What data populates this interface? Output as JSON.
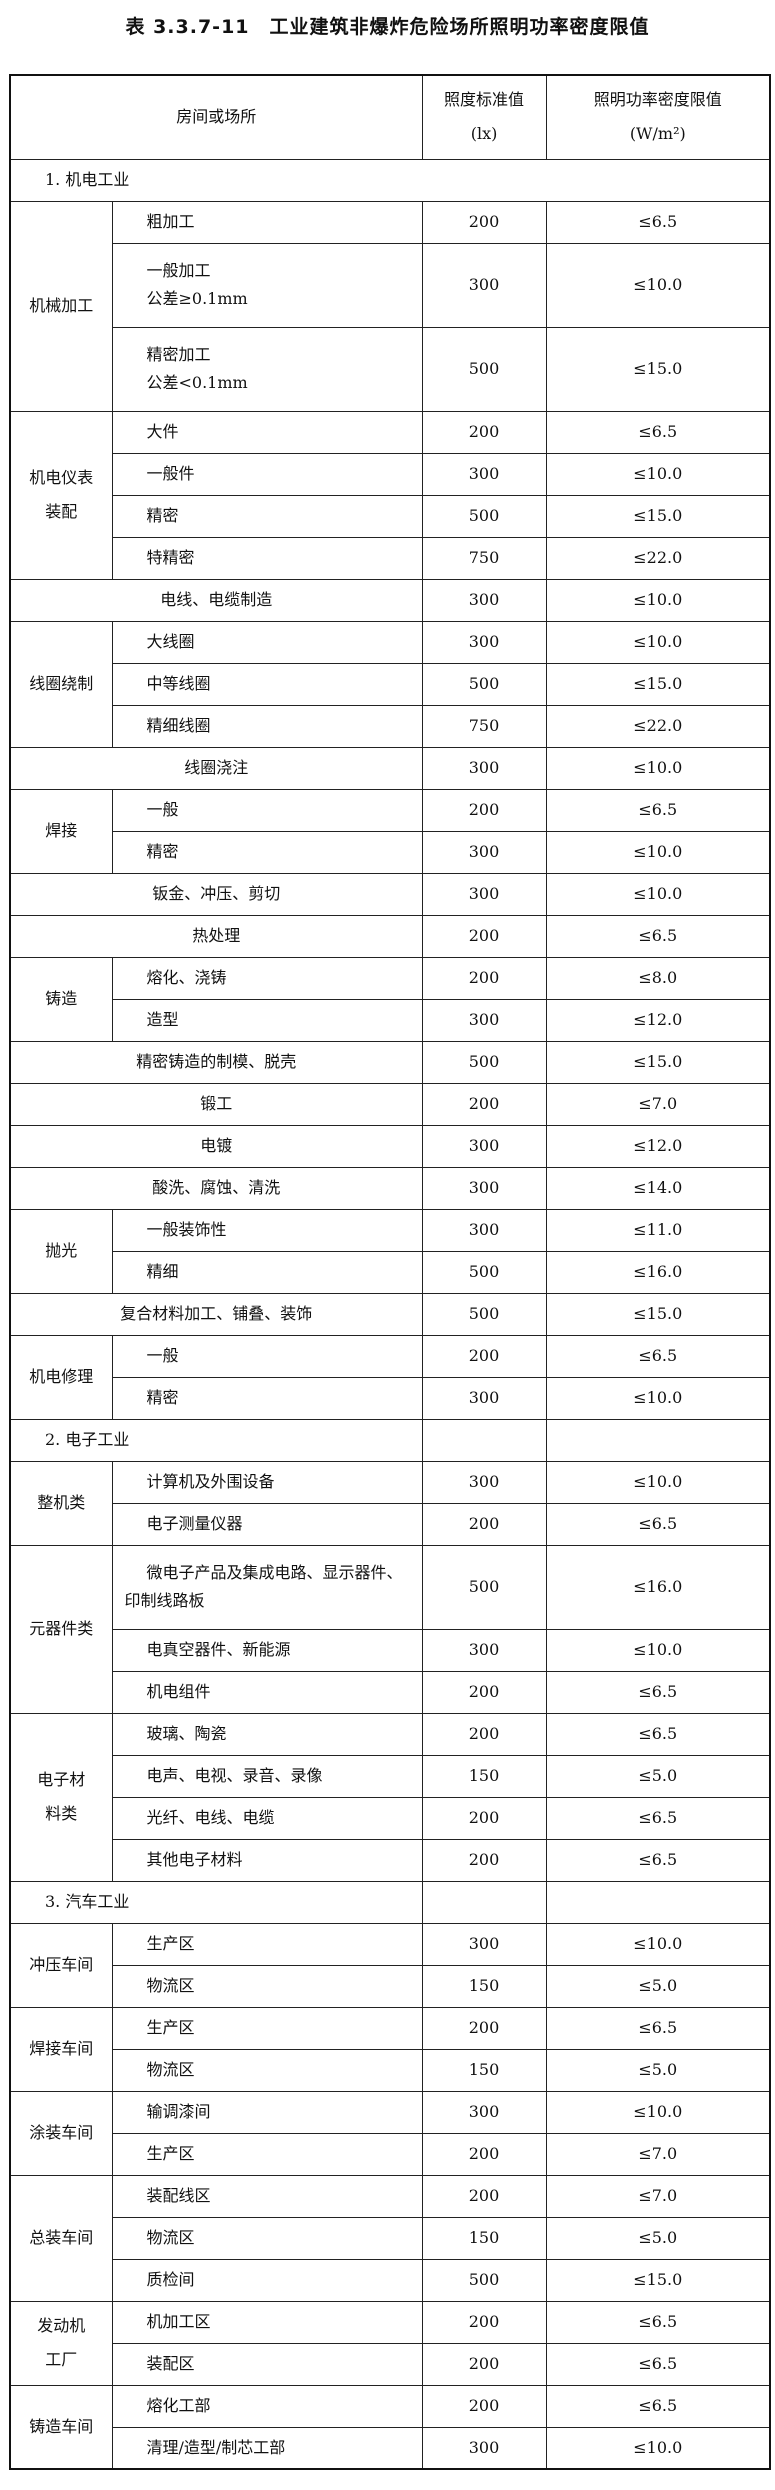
{
  "title": "表 3.3.7-11　工业建筑非爆炸危险场所照明功率密度限值",
  "header": {
    "room": "房间或场所",
    "lux": "照度标准值\n(lx)",
    "lpd": "照明功率密度限值\n(W/m²)"
  },
  "sections": [
    {
      "label": "1. 机电工业",
      "rows": [
        {
          "category": "机械加工",
          "items": [
            {
              "name": "粗加工",
              "lux": "200",
              "lpd": "≤6.5"
            },
            {
              "name": "一般加工\n公差≥0.1mm",
              "lux": "300",
              "lpd": "≤10.0"
            },
            {
              "name": "精密加工\n公差<0.1mm",
              "lux": "500",
              "lpd": "≤15.0"
            }
          ]
        },
        {
          "category": "机电仪表\n装配",
          "items": [
            {
              "name": "大件",
              "lux": "200",
              "lpd": "≤6.5"
            },
            {
              "name": "一般件",
              "lux": "300",
              "lpd": "≤10.0"
            },
            {
              "name": "精密",
              "lux": "500",
              "lpd": "≤15.0"
            },
            {
              "name": "特精密",
              "lux": "750",
              "lpd": "≤22.0"
            }
          ]
        },
        {
          "name": "电线、电缆制造",
          "lux": "300",
          "lpd": "≤10.0"
        },
        {
          "category": "线圈绕制",
          "items": [
            {
              "name": "大线圈",
              "lux": "300",
              "lpd": "≤10.0"
            },
            {
              "name": "中等线圈",
              "lux": "500",
              "lpd": "≤15.0"
            },
            {
              "name": "精细线圈",
              "lux": "750",
              "lpd": "≤22.0"
            }
          ]
        },
        {
          "name": "线圈浇注",
          "lux": "300",
          "lpd": "≤10.0"
        },
        {
          "category": "焊接",
          "items": [
            {
              "name": "一般",
              "lux": "200",
              "lpd": "≤6.5"
            },
            {
              "name": "精密",
              "lux": "300",
              "lpd": "≤10.0"
            }
          ]
        },
        {
          "name": "钣金、冲压、剪切",
          "lux": "300",
          "lpd": "≤10.0"
        },
        {
          "name": "热处理",
          "lux": "200",
          "lpd": "≤6.5"
        },
        {
          "category": "铸造",
          "items": [
            {
              "name": "熔化、浇铸",
              "lux": "200",
              "lpd": "≤8.0"
            },
            {
              "name": "造型",
              "lux": "300",
              "lpd": "≤12.0"
            }
          ]
        },
        {
          "name": "精密铸造的制模、脱壳",
          "lux": "500",
          "lpd": "≤15.0"
        },
        {
          "name": "锻工",
          "lux": "200",
          "lpd": "≤7.0"
        },
        {
          "name": "电镀",
          "lux": "300",
          "lpd": "≤12.0"
        },
        {
          "name": "酸洗、腐蚀、清洗",
          "lux": "300",
          "lpd": "≤14.0"
        },
        {
          "category": "抛光",
          "items": [
            {
              "name": "一般装饰性",
              "lux": "300",
              "lpd": "≤11.0"
            },
            {
              "name": "精细",
              "lux": "500",
              "lpd": "≤16.0"
            }
          ]
        },
        {
          "name": "复合材料加工、铺叠、装饰",
          "lux": "500",
          "lpd": "≤15.0"
        },
        {
          "category": "机电修理",
          "items": [
            {
              "name": "一般",
              "lux": "200",
              "lpd": "≤6.5"
            },
            {
              "name": "精密",
              "lux": "300",
              "lpd": "≤10.0"
            }
          ]
        }
      ]
    },
    {
      "label": "2. 电子工业",
      "rows": [
        {
          "category": "整机类",
          "items": [
            {
              "name": "计算机及外围设备",
              "lux": "300",
              "lpd": "≤10.0"
            },
            {
              "name": "电子测量仪器",
              "lux": "200",
              "lpd": "≤6.5"
            }
          ]
        },
        {
          "category": "元器件类",
          "items": [
            {
              "name": "微电子产品及集成电路、显示器件、印制线路板",
              "lux": "500",
              "lpd": "≤16.0",
              "wrap": true
            },
            {
              "name": "电真空器件、新能源",
              "lux": "300",
              "lpd": "≤10.0"
            },
            {
              "name": "机电组件",
              "lux": "200",
              "lpd": "≤6.5"
            }
          ]
        },
        {
          "category": "电子材\n料类",
          "items": [
            {
              "name": "玻璃、陶瓷",
              "lux": "200",
              "lpd": "≤6.5"
            },
            {
              "name": "电声、电视、录音、录像",
              "lux": "150",
              "lpd": "≤5.0"
            },
            {
              "name": "光纤、电线、电缆",
              "lux": "200",
              "lpd": "≤6.5"
            },
            {
              "name": "其他电子材料",
              "lux": "200",
              "lpd": "≤6.5"
            }
          ]
        }
      ]
    },
    {
      "label": "3. 汽车工业",
      "rows": [
        {
          "category": "冲压车间",
          "items": [
            {
              "name": "生产区",
              "lux": "300",
              "lpd": "≤10.0"
            },
            {
              "name": "物流区",
              "lux": "150",
              "lpd": "≤5.0"
            }
          ]
        },
        {
          "category": "焊接车间",
          "items": [
            {
              "name": "生产区",
              "lux": "200",
              "lpd": "≤6.5"
            },
            {
              "name": "物流区",
              "lux": "150",
              "lpd": "≤5.0"
            }
          ]
        },
        {
          "category": "涂装车间",
          "items": [
            {
              "name": "输调漆间",
              "lux": "300",
              "lpd": "≤10.0"
            },
            {
              "name": "生产区",
              "lux": "200",
              "lpd": "≤7.0"
            }
          ]
        },
        {
          "category": "总装车间",
          "items": [
            {
              "name": "装配线区",
              "lux": "200",
              "lpd": "≤7.0"
            },
            {
              "name": "物流区",
              "lux": "150",
              "lpd": "≤5.0"
            },
            {
              "name": "质检间",
              "lux": "500",
              "lpd": "≤15.0"
            }
          ]
        },
        {
          "category": "发动机\n工厂",
          "items": [
            {
              "name": "机加工区",
              "lux": "200",
              "lpd": "≤6.5"
            },
            {
              "name": "装配区",
              "lux": "200",
              "lpd": "≤6.5"
            }
          ]
        },
        {
          "category": "铸造车间",
          "items": [
            {
              "name": "熔化工部",
              "lux": "200",
              "lpd": "≤6.5"
            },
            {
              "name": "清理/造型/制芯工部",
              "lux": "300",
              "lpd": "≤10.0"
            }
          ]
        }
      ]
    }
  ]
}
